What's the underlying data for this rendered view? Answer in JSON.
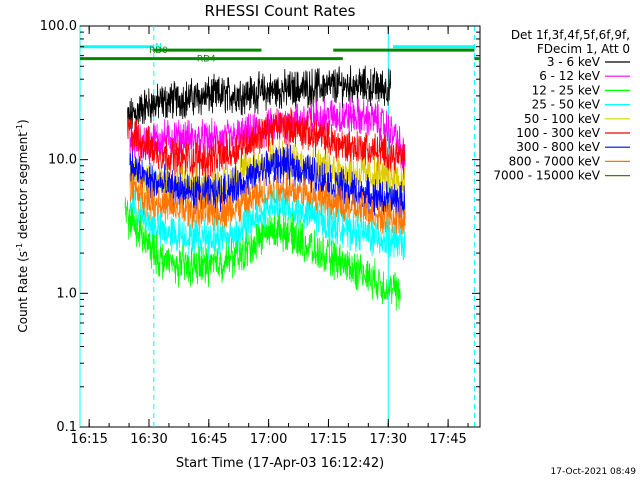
{
  "chart_data": {
    "type": "line",
    "title": "RHESSI Count Rates",
    "xlabel": "Start Time (17-Apr-03 16:12:42)",
    "ylabel_prefix": "Count Rate (s",
    "ylabel_sup": "-1",
    "ylabel_suffix": " detector segment",
    "ylabel_sup2": "-1",
    "ylabel_end": ")",
    "y_scale": "log",
    "xlim": [
      16.2117,
      17.8833
    ],
    "ylim": [
      0.1,
      100
    ],
    "x_ticks": [
      {
        "t": 16.25,
        "label": "16:15"
      },
      {
        "t": 16.5,
        "label": "16:30"
      },
      {
        "t": 16.75,
        "label": "16:45"
      },
      {
        "t": 17.0,
        "label": "17:00"
      },
      {
        "t": 17.25,
        "label": "17:15"
      },
      {
        "t": 17.5,
        "label": "17:30"
      },
      {
        "t": 17.75,
        "label": "17:45"
      }
    ],
    "y_ticks": [
      {
        "v": 0.1,
        "label": "0.1"
      },
      {
        "v": 1.0,
        "label": "1.0"
      },
      {
        "v": 10.0,
        "label": "10.0"
      },
      {
        "v": 100.0,
        "label": "100.0"
      }
    ],
    "legend_header": [
      "Det 1f,3f,4f,5f,6f,9f,",
      "FDecim 1, Att 0"
    ],
    "series": [
      {
        "name": "3 - 6 keV",
        "color": "#000000",
        "points": [
          [
            16.41,
            20
          ],
          [
            16.48,
            25
          ],
          [
            16.6,
            28
          ],
          [
            16.75,
            30
          ],
          [
            16.9,
            31
          ],
          [
            17.05,
            33
          ],
          [
            17.2,
            35
          ],
          [
            17.35,
            36
          ],
          [
            17.45,
            35
          ],
          [
            17.51,
            34
          ]
        ]
      },
      {
        "name": "6 - 12 keV",
        "color": "#ff00ff",
        "points": [
          [
            16.42,
            13
          ],
          [
            16.5,
            14
          ],
          [
            16.6,
            14.5
          ],
          [
            16.75,
            14
          ],
          [
            16.85,
            14.5
          ],
          [
            16.95,
            16
          ],
          [
            17.05,
            18
          ],
          [
            17.15,
            20
          ],
          [
            17.25,
            21
          ],
          [
            17.35,
            21
          ],
          [
            17.45,
            20
          ],
          [
            17.53,
            15
          ],
          [
            17.57,
            10
          ]
        ]
      },
      {
        "name": "12 - 25 keV",
        "color": "#00ff00",
        "points": [
          [
            16.4,
            4
          ],
          [
            16.45,
            3
          ],
          [
            16.5,
            2.2
          ],
          [
            16.55,
            1.8
          ],
          [
            16.62,
            1.6
          ],
          [
            16.72,
            1.6
          ],
          [
            16.8,
            1.7
          ],
          [
            16.9,
            2.0
          ],
          [
            16.98,
            2.8
          ],
          [
            17.05,
            3.0
          ],
          [
            17.12,
            2.6
          ],
          [
            17.2,
            2.0
          ],
          [
            17.3,
            1.7
          ],
          [
            17.4,
            1.4
          ],
          [
            17.5,
            1.1
          ],
          [
            17.55,
            1.0
          ]
        ]
      },
      {
        "name": "25 - 50 keV",
        "color": "#00ffff",
        "points": [
          [
            16.42,
            4.5
          ],
          [
            16.48,
            3.5
          ],
          [
            16.55,
            2.9
          ],
          [
            16.65,
            2.7
          ],
          [
            16.75,
            2.6
          ],
          [
            16.85,
            2.7
          ],
          [
            16.93,
            3.5
          ],
          [
            17.02,
            4.5
          ],
          [
            17.1,
            4.2
          ],
          [
            17.2,
            3.6
          ],
          [
            17.3,
            3.1
          ],
          [
            17.4,
            2.8
          ],
          [
            17.5,
            2.5
          ],
          [
            17.57,
            2.3
          ]
        ]
      },
      {
        "name": "50 - 100 keV",
        "color": "#ddcc00",
        "points": [
          [
            16.42,
            8
          ],
          [
            16.5,
            7
          ],
          [
            16.6,
            6.5
          ],
          [
            16.72,
            6.2
          ],
          [
            16.82,
            6.5
          ],
          [
            16.92,
            8.5
          ],
          [
            17.02,
            10.5
          ],
          [
            17.1,
            10
          ],
          [
            17.2,
            9
          ],
          [
            17.3,
            8.2
          ],
          [
            17.4,
            7.8
          ],
          [
            17.5,
            7.2
          ],
          [
            17.57,
            7
          ]
        ]
      },
      {
        "name": "100 - 300 keV",
        "color": "#ff0000",
        "points": [
          [
            16.41,
            17
          ],
          [
            16.48,
            13
          ],
          [
            16.55,
            11
          ],
          [
            16.65,
            10
          ],
          [
            16.75,
            10
          ],
          [
            16.85,
            11.5
          ],
          [
            16.95,
            15
          ],
          [
            17.05,
            18
          ],
          [
            17.12,
            17
          ],
          [
            17.2,
            15
          ],
          [
            17.3,
            13
          ],
          [
            17.4,
            12
          ],
          [
            17.5,
            11
          ],
          [
            17.57,
            10
          ]
        ]
      },
      {
        "name": "300 - 800 keV",
        "color": "#0000ff",
        "points": [
          [
            16.42,
            9
          ],
          [
            16.5,
            7
          ],
          [
            16.6,
            6
          ],
          [
            16.7,
            5.5
          ],
          [
            16.8,
            5.6
          ],
          [
            16.9,
            6.8
          ],
          [
            16.98,
            8.5
          ],
          [
            17.05,
            9.3
          ],
          [
            17.15,
            8.3
          ],
          [
            17.25,
            6.8
          ],
          [
            17.35,
            5.8
          ],
          [
            17.45,
            5.2
          ],
          [
            17.5,
            5
          ],
          [
            17.57,
            4.8
          ]
        ]
      },
      {
        "name": "800 - 7000 keV",
        "color": "#ff7700",
        "points": [
          [
            16.42,
            6.2
          ],
          [
            16.5,
            5
          ],
          [
            16.6,
            4.3
          ],
          [
            16.7,
            4.1
          ],
          [
            16.8,
            4.0
          ],
          [
            16.9,
            4.6
          ],
          [
            16.98,
            5.6
          ],
          [
            17.05,
            6.1
          ],
          [
            17.15,
            5.5
          ],
          [
            17.25,
            4.8
          ],
          [
            17.35,
            4.3
          ],
          [
            17.45,
            3.9
          ],
          [
            17.5,
            3.7
          ],
          [
            17.57,
            3.4
          ]
        ]
      },
      {
        "name": "7000 - 15000 keV",
        "color": "#557700",
        "points": []
      }
    ],
    "vlines_solid": [
      16.2117,
      17.5
    ],
    "vlines_dashed": [
      16.52,
      17.86
    ],
    "segments": [
      {
        "label": "N",
        "color": "#00ffff",
        "y": 70,
        "ranges": [
          [
            16.2117,
            16.52
          ],
          [
            17.52,
            17.86
          ]
        ],
        "label_at": 16.525
      },
      {
        "label": "RD0",
        "color": "#008800",
        "y": 66,
        "ranges": [
          [
            16.52,
            16.97
          ],
          [
            17.27,
            17.86
          ]
        ],
        "label_at": 16.5
      },
      {
        "label": "RD4",
        "color": "#008800",
        "y": 57,
        "ranges": [
          [
            16.2117,
            16.97
          ],
          [
            16.97,
            17.31
          ],
          [
            17.86,
            17.88
          ]
        ],
        "label_at": 16.7
      }
    ],
    "timestamp": "17-Oct-2021 08:49"
  }
}
